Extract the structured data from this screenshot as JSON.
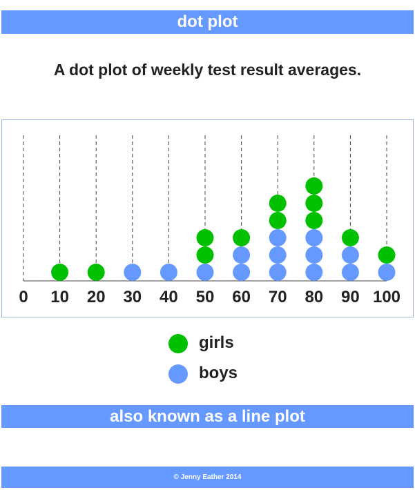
{
  "header": {
    "title": "dot plot"
  },
  "subtitle": "A dot plot of weekly test result averages.",
  "footer_banner": "also known as a line plot",
  "copyright": "© Jenny Eather 2014",
  "colors": {
    "girls": "#00c000",
    "boys": "#6699ff",
    "banner": "#6699ff"
  },
  "chart_data": {
    "type": "scatter",
    "x_ticks": [
      "0",
      "10",
      "20",
      "30",
      "40",
      "50",
      "60",
      "70",
      "80",
      "90",
      "100"
    ],
    "xlim": [
      0,
      100
    ],
    "series": [
      {
        "name": "girls",
        "counts": {
          "10": 1,
          "20": 1,
          "50": 2,
          "60": 1,
          "70": 2,
          "80": 3,
          "90": 1,
          "100": 1
        }
      },
      {
        "name": "boys",
        "counts": {
          "30": 1,
          "40": 1,
          "50": 1,
          "60": 2,
          "70": 3,
          "80": 3,
          "90": 2,
          "100": 1
        }
      }
    ],
    "grid": "vertical dashed"
  },
  "legend": [
    {
      "label": "girls",
      "color": "#00c000"
    },
    {
      "label": "boys",
      "color": "#6699ff"
    }
  ]
}
